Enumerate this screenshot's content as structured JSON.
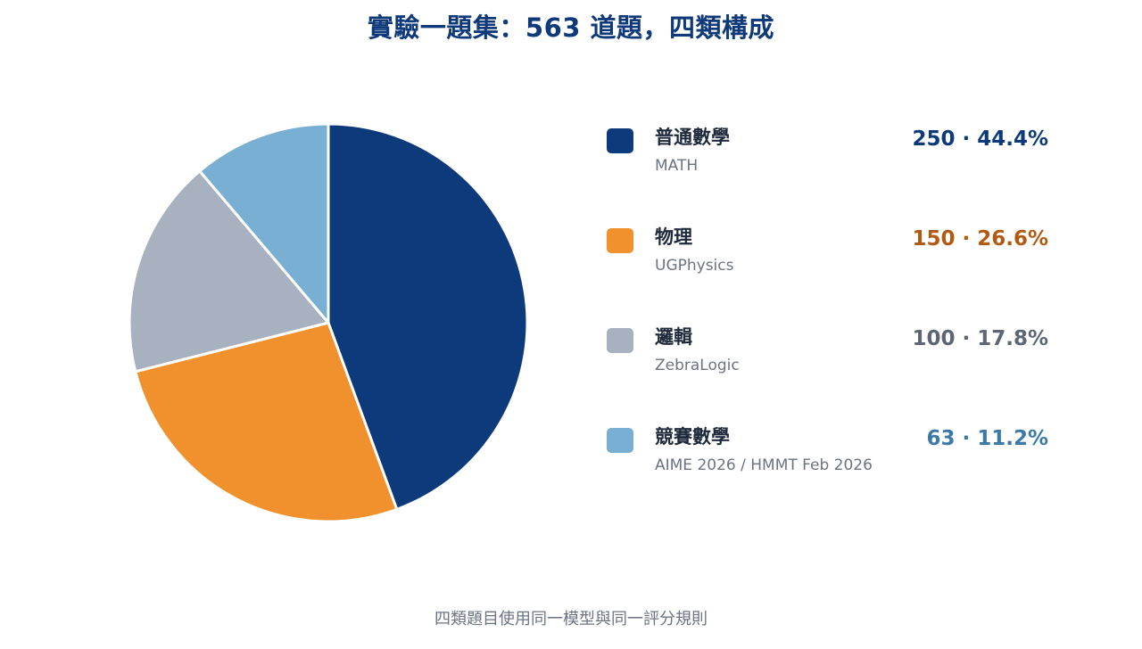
{
  "title": "實驗一題集：563 道題，四類構成",
  "footnote": "四類題目使用同一模型與同一評分規則",
  "chart_data": {
    "type": "pie",
    "title": "實驗一題集：563 道題，四類構成",
    "total": 563,
    "slices": [
      {
        "label": "普通數學",
        "sublabel": "MATH",
        "count": 250,
        "percent": 44.4,
        "value_text": "250 · 44.4%",
        "color": "#0d3a7b",
        "value_color": "#0d3a7b"
      },
      {
        "label": "物理",
        "sublabel": "UGPhysics",
        "count": 150,
        "percent": 26.6,
        "value_text": "150 · 26.6%",
        "color": "#f0912e",
        "value_color": "#b35a12"
      },
      {
        "label": "邏輯",
        "sublabel": "ZebraLogic",
        "count": 100,
        "percent": 17.8,
        "value_text": "100 · 17.8%",
        "color": "#a8b1bf",
        "value_color": "#5e6674"
      },
      {
        "label": "競賽數學",
        "sublabel": "AIME 2026 / HMMT Feb 2026",
        "count": 63,
        "percent": 11.2,
        "value_text": "63 · 11.2%",
        "color": "#79afd2",
        "value_color": "#3b7aa6"
      }
    ],
    "legend_position": "right"
  }
}
